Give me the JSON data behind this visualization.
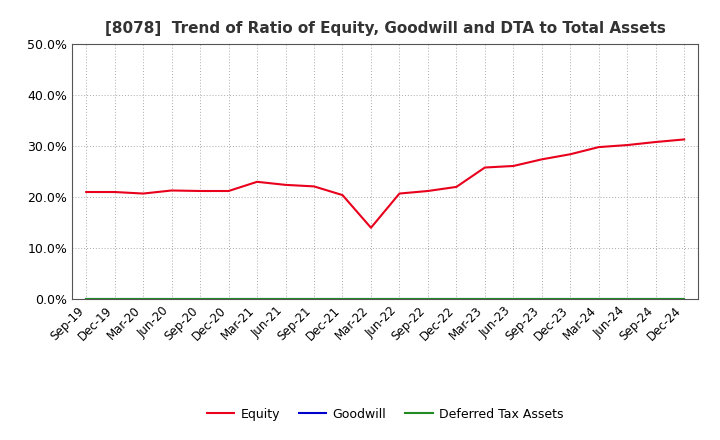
{
  "title": "[8078]  Trend of Ratio of Equity, Goodwill and DTA to Total Assets",
  "x_labels": [
    "Sep-19",
    "Dec-19",
    "Mar-20",
    "Jun-20",
    "Sep-20",
    "Dec-20",
    "Mar-21",
    "Jun-21",
    "Sep-21",
    "Dec-21",
    "Mar-22",
    "Jun-22",
    "Sep-22",
    "Dec-22",
    "Mar-23",
    "Jun-23",
    "Sep-23",
    "Dec-23",
    "Mar-24",
    "Jun-24",
    "Sep-24",
    "Dec-24"
  ],
  "equity": [
    0.21,
    0.21,
    0.207,
    0.213,
    0.212,
    0.212,
    0.23,
    0.224,
    0.221,
    0.204,
    0.14,
    0.207,
    0.212,
    0.22,
    0.258,
    0.261,
    0.274,
    0.284,
    0.298,
    0.302,
    0.308,
    0.313
  ],
  "goodwill": [
    0.0,
    0.0,
    0.0,
    0.0,
    0.0,
    0.0,
    0.0,
    0.0,
    0.0,
    0.0,
    0.0,
    0.0,
    0.0,
    0.0,
    0.0,
    0.0,
    0.0,
    0.0,
    0.0,
    0.0,
    0.0,
    0.0
  ],
  "dta": [
    0.0,
    0.0,
    0.0,
    0.0,
    0.0,
    0.0,
    0.0,
    0.0,
    0.0,
    0.0,
    0.0,
    0.0,
    0.0,
    0.0,
    0.0,
    0.0,
    0.0,
    0.0,
    0.0,
    0.0,
    0.0,
    0.0
  ],
  "equity_color": "#e8001c",
  "goodwill_color": "#0000cd",
  "dta_color": "#228b22",
  "ylim": [
    0.0,
    0.5
  ],
  "yticks": [
    0.0,
    0.1,
    0.2,
    0.3,
    0.4,
    0.5
  ],
  "background_color": "#ffffff",
  "grid_color": "#aaaaaa",
  "title_fontsize": 11,
  "title_color": "#333333",
  "legend_labels": [
    "Equity",
    "Goodwill",
    "Deferred Tax Assets"
  ],
  "tick_fontsize": 8.5,
  "ytick_fontsize": 9
}
